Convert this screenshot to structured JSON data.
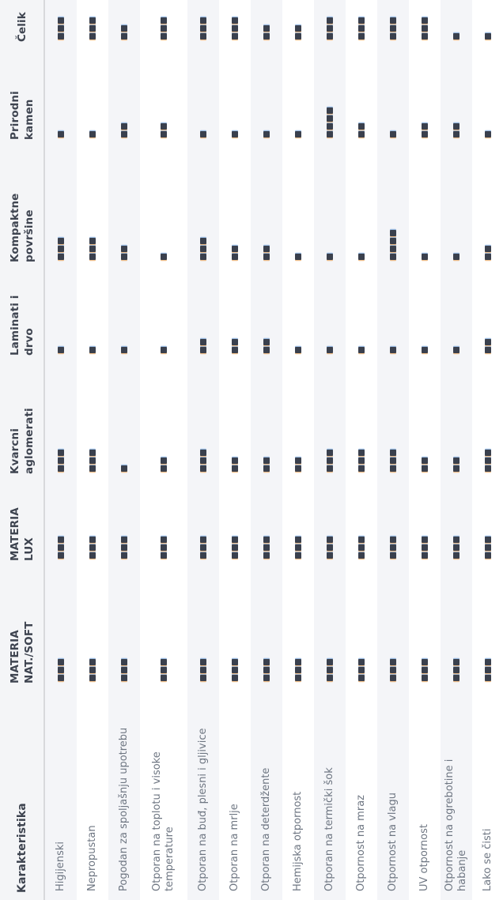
{
  "table": {
    "header_label": "Karakteristika",
    "materials": [
      "MATERIA NAT./SOFT",
      "MATERIA LUX",
      "Kvarcni aglomerati",
      "Laminati i drvo",
      "Kompaktne površine",
      "Prirodni kamen",
      "Čelik"
    ],
    "rows": [
      {
        "label": "Higijenski",
        "ratings": [
          3,
          3,
          3,
          1,
          3,
          1,
          3
        ]
      },
      {
        "label": "Nepropustan",
        "ratings": [
          3,
          3,
          3,
          1,
          3,
          1,
          3
        ]
      },
      {
        "label": "Pogodan za spoljašnju upotrebu",
        "ratings": [
          3,
          3,
          1,
          1,
          2,
          2,
          2
        ]
      },
      {
        "label": "Otporan na toplotu i visoke temperature",
        "ratings": [
          3,
          3,
          2,
          1,
          1,
          2,
          3
        ]
      },
      {
        "label": "Otporan na buđ, plesni i gljivice",
        "ratings": [
          3,
          3,
          3,
          2,
          3,
          1,
          3
        ]
      },
      {
        "label": "Otporan na mrlje",
        "ratings": [
          3,
          3,
          2,
          2,
          2,
          1,
          3
        ]
      },
      {
        "label": "Otporan na deterdžente",
        "ratings": [
          3,
          3,
          2,
          2,
          2,
          1,
          2
        ]
      },
      {
        "label": "Hemijska otpornost",
        "ratings": [
          3,
          3,
          2,
          1,
          1,
          1,
          2
        ]
      },
      {
        "label": "Otporan na termički šok",
        "ratings": [
          3,
          3,
          3,
          1,
          1,
          4,
          3
        ]
      },
      {
        "label": "Otpornost na mraz",
        "ratings": [
          3,
          3,
          3,
          1,
          1,
          2,
          3
        ]
      },
      {
        "label": "Otpornost na vlagu",
        "ratings": [
          3,
          3,
          3,
          1,
          4,
          1,
          3
        ]
      },
      {
        "label": "UV otpornost",
        "ratings": [
          3,
          3,
          2,
          1,
          1,
          2,
          3
        ]
      },
      {
        "label": "Otpornost na ogrebotine i habanje",
        "ratings": [
          3,
          3,
          2,
          1,
          1,
          2,
          1
        ]
      },
      {
        "label": "Lako se čisti",
        "ratings": [
          3,
          3,
          3,
          2,
          2,
          1,
          1
        ]
      }
    ],
    "orientation": "rotated-90-ccw",
    "colors": {
      "dot": "#3a404d",
      "alt_row_bg": "#f4f5f8",
      "header_bg": "#f4f5f7",
      "header_text": "#3e4450",
      "label_text": "#6e7682",
      "header_border": "#d8d9dc"
    }
  }
}
